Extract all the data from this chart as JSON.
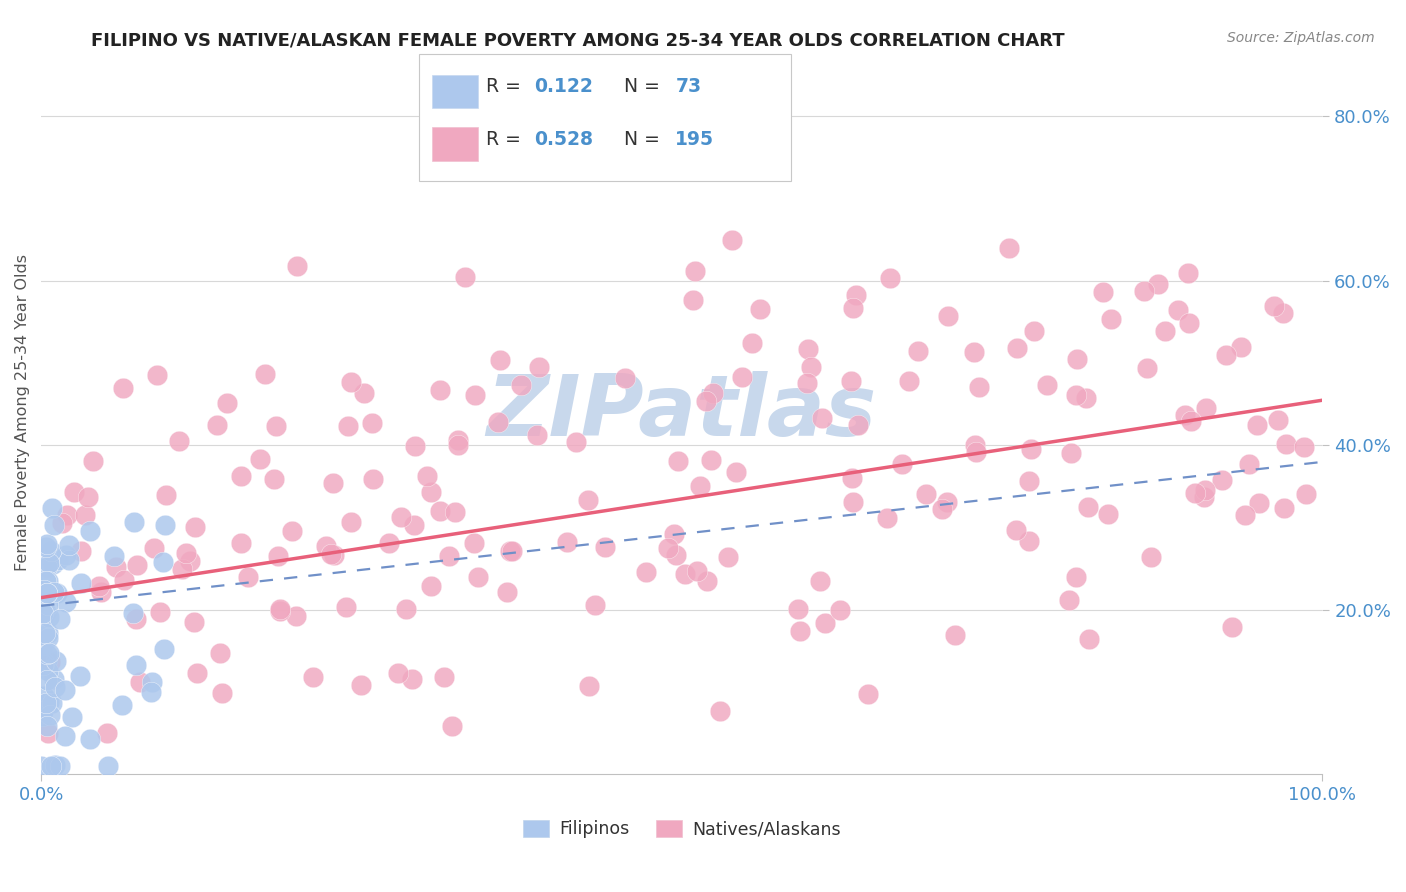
{
  "title": "FILIPINO VS NATIVE/ALASKAN FEMALE POVERTY AMONG 25-34 YEAR OLDS CORRELATION CHART",
  "source": "Source: ZipAtlas.com",
  "ylabel": "Female Poverty Among 25-34 Year Olds",
  "color_filipino": "#adc8ed",
  "color_native": "#f0a8c0",
  "color_filipino_line": "#7090c8",
  "color_native_line": "#e8607a",
  "tick_label_color": "#4a90cc",
  "legend_color_rn": "#4a90cc",
  "background_color": "#ffffff",
  "grid_color": "#d8d8d8",
  "watermark": "ZIPatlas",
  "watermark_color": "#c8d8ec",
  "xlim": [
    0.0,
    1.0
  ],
  "ylim": [
    0.0,
    0.88
  ],
  "ytick_values": [
    0.2,
    0.4,
    0.6,
    0.8
  ],
  "ytick_labels": [
    "20.0%",
    "40.0%",
    "60.0%",
    "80.0%"
  ],
  "legend_r1": "R = ",
  "legend_v1": "0.122",
  "legend_n1_label": "N = ",
  "legend_n1_val": "73",
  "legend_r2": "R = ",
  "legend_v2": "0.528",
  "legend_n2_label": "N = ",
  "legend_n2_val": "195",
  "fil_line_start_y": 0.205,
  "fil_line_end_y": 0.38,
  "nat_line_start_y": 0.215,
  "nat_line_end_y": 0.455
}
